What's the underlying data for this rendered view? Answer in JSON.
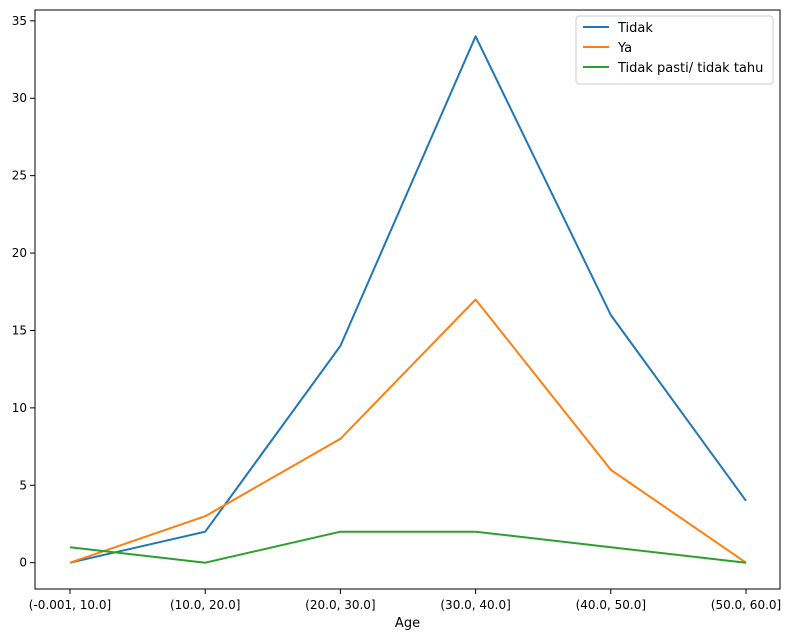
{
  "chart_data": {
    "type": "line",
    "title": "",
    "xlabel": "Age",
    "ylabel": "",
    "categories": [
      "(-0.001, 10.0]",
      "(10.0, 20.0]",
      "(20.0, 30.0]",
      "(30.0, 40.0]",
      "(40.0, 50.0]",
      "(50.0, 60.0]"
    ],
    "yticks": [
      0,
      5,
      10,
      15,
      20,
      25,
      30,
      35
    ],
    "ylim": [
      -1.7,
      35.7
    ],
    "grid": false,
    "legend_position": "top-right",
    "series": [
      {
        "name": "Tidak",
        "color": "#1f77b4",
        "values": [
          0,
          2,
          14,
          34,
          16,
          4
        ]
      },
      {
        "name": "Ya",
        "color": "#ff7f0e",
        "values": [
          0,
          3,
          8,
          17,
          6,
          0
        ]
      },
      {
        "name": "Tidak pasti/ tidak tahu",
        "color": "#2ca02c",
        "values": [
          1,
          0,
          2,
          2,
          1,
          0
        ]
      }
    ]
  }
}
